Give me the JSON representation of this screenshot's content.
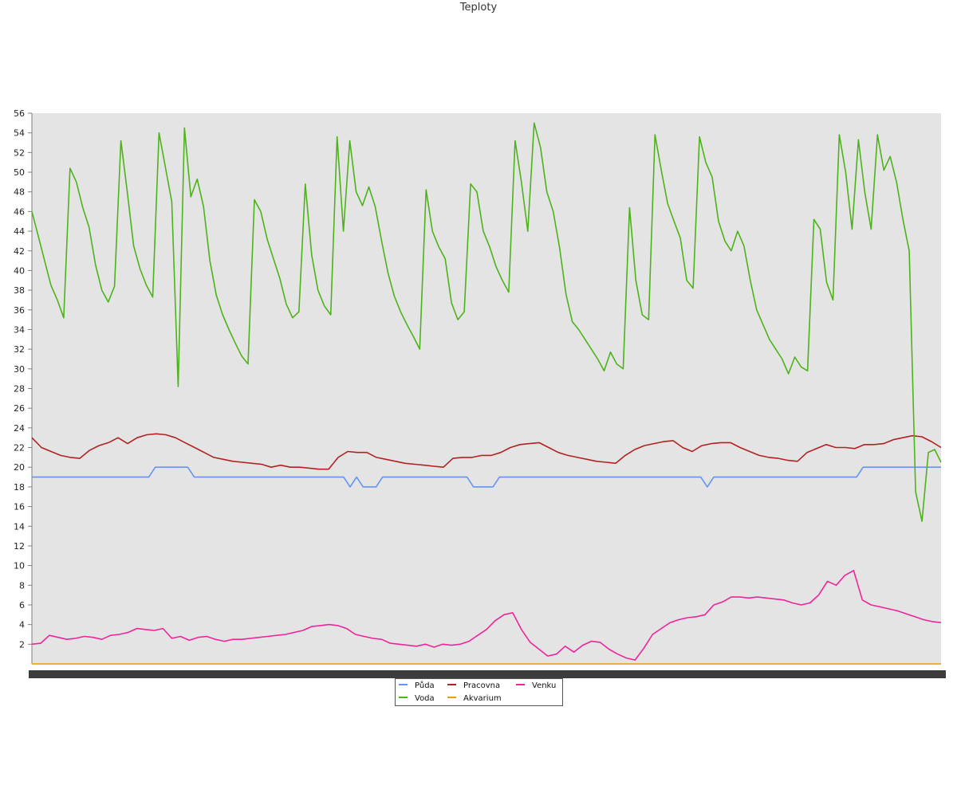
{
  "chart_data": {
    "type": "line",
    "title": "Teploty",
    "xlabel": "",
    "ylabel": "",
    "ylim": [
      0,
      56
    ],
    "yticks": [
      2,
      4,
      6,
      8,
      10,
      12,
      14,
      16,
      18,
      20,
      22,
      24,
      26,
      28,
      30,
      32,
      34,
      36,
      38,
      40,
      42,
      44,
      46,
      48,
      50,
      52,
      54,
      56
    ],
    "grid": false,
    "legend_position": "bottom-center",
    "x_count": 141,
    "series": [
      {
        "name": "Půda",
        "color": "#6495ed",
        "values": [
          19,
          19,
          19,
          19,
          19,
          19,
          19,
          19,
          19,
          19,
          19,
          19,
          19,
          19,
          19,
          19,
          19,
          19,
          19,
          20,
          20,
          20,
          20,
          20,
          20,
          19,
          19,
          19,
          19,
          19,
          19,
          19,
          19,
          19,
          19,
          19,
          19,
          19,
          19,
          19,
          19,
          19,
          19,
          19,
          19,
          19,
          19,
          19,
          19,
          18,
          19,
          18,
          18,
          18,
          19,
          19,
          19,
          19,
          19,
          19,
          19,
          19,
          19,
          19,
          19,
          19,
          19,
          19,
          18,
          18,
          18,
          18,
          19,
          19,
          19,
          19,
          19,
          19,
          19,
          19,
          19,
          19,
          19,
          19,
          19,
          19,
          19,
          19,
          19,
          19,
          19,
          19,
          19,
          19,
          19,
          19,
          19,
          19,
          19,
          19,
          19,
          19,
          19,
          19,
          18,
          19,
          19,
          19,
          19,
          19,
          19,
          19,
          19,
          19,
          19,
          19,
          19,
          19,
          19,
          19,
          19,
          19,
          19,
          19,
          19,
          19,
          19,
          19,
          20,
          20,
          20,
          20,
          20,
          20,
          20,
          20,
          20,
          20,
          20,
          20,
          20
        ]
      },
      {
        "name": "Voda",
        "color": "#4db31a",
        "values": [
          46,
          43.5,
          41,
          38.5,
          37,
          35.2,
          50.4,
          49,
          46.4,
          44.4,
          40.6,
          38,
          36.8,
          38.4,
          53.2,
          48,
          42.5,
          40.2,
          38.5,
          37.3,
          54,
          50.5,
          47,
          28.2,
          54.5,
          47.5,
          49.3,
          46.5,
          41,
          37.5,
          35.5,
          34,
          32.6,
          31.3,
          30.5,
          47.2,
          46,
          43.2,
          41.2,
          39.2,
          36.6,
          35.2,
          35.8,
          48.8,
          41.6,
          38,
          36.4,
          35.5,
          53.6,
          44,
          53.2,
          48,
          46.6,
          48.5,
          46.5,
          43,
          39.8,
          37.4,
          35.8,
          34.5,
          33.3,
          32,
          48.2,
          44,
          42.4,
          41.2,
          36.7,
          35,
          35.8,
          48.8,
          48,
          44,
          42.4,
          40.4,
          39,
          37.8,
          53.2,
          49,
          44,
          55,
          52.5,
          48,
          46,
          42.3,
          37.6,
          34.8,
          34,
          33,
          32,
          31,
          29.8,
          31.7,
          30.5,
          30,
          46.4,
          39,
          35.5,
          35,
          53.8,
          50.2,
          46.8,
          45,
          43.3,
          39,
          38.2,
          53.6,
          51,
          49.5,
          45,
          43,
          42,
          44,
          42.5,
          39,
          36,
          34.5,
          33,
          32,
          31,
          29.5,
          31.2,
          30.2,
          29.8,
          45.2,
          44.2,
          38.8,
          37,
          53.8,
          50,
          44.2,
          53.3,
          48,
          44.2,
          53.8,
          50.2,
          51.6,
          49,
          45.2,
          42,
          17.5,
          14.5,
          21.5,
          21.8,
          20.5
        ]
      },
      {
        "name": "Pracovna",
        "color": "#b22222",
        "values": [
          23,
          22,
          21.6,
          21.2,
          21,
          20.9,
          21.7,
          22.2,
          22.5,
          23,
          22.4,
          23,
          23.3,
          23.4,
          23.3,
          23,
          22.5,
          22,
          21.5,
          21,
          20.8,
          20.6,
          20.5,
          20.4,
          20.3,
          20,
          20.2,
          20,
          20,
          19.9,
          19.8,
          19.8,
          21,
          21.6,
          21.5,
          21.5,
          21,
          20.8,
          20.6,
          20.4,
          20.3,
          20.2,
          20.1,
          20,
          20.9,
          21,
          21,
          21.2,
          21.2,
          21.5,
          22,
          22.3,
          22.4,
          22.5,
          22,
          21.5,
          21.2,
          21,
          20.8,
          20.6,
          20.5,
          20.4,
          21.2,
          21.8,
          22.2,
          22.4,
          22.6,
          22.7,
          22,
          21.6,
          22.2,
          22.4,
          22.5,
          22.5,
          22,
          21.6,
          21.2,
          21,
          20.9,
          20.7,
          20.6,
          21.5,
          21.9,
          22.3,
          22,
          22,
          21.9,
          22.3,
          22.3,
          22.4,
          22.8,
          23,
          23.2,
          23.1,
          22.6,
          22
        ]
      },
      {
        "name": "Akvarium",
        "color": "#e8a000",
        "values": [
          0,
          0
        ]
      },
      {
        "name": "Venku",
        "color": "#f0249a",
        "values": [
          2,
          2.1,
          2.9,
          2.7,
          2.5,
          2.6,
          2.8,
          2.7,
          2.5,
          2.9,
          3,
          3.2,
          3.6,
          3.5,
          3.4,
          3.6,
          2.6,
          2.8,
          2.4,
          2.7,
          2.8,
          2.5,
          2.3,
          2.5,
          2.5,
          2.6,
          2.7,
          2.8,
          2.9,
          3,
          3.2,
          3.4,
          3.8,
          3.9,
          4,
          3.9,
          3.6,
          3,
          2.8,
          2.6,
          2.5,
          2.1,
          2,
          1.9,
          1.8,
          2,
          1.7,
          2,
          1.9,
          2,
          2.3,
          2.9,
          3.5,
          4.4,
          5,
          5.2,
          3.5,
          2.2,
          1.5,
          0.8,
          1,
          1.8,
          1.2,
          1.9,
          2.3,
          2.2,
          1.5,
          1,
          0.6,
          0.4,
          1.6,
          3,
          3.6,
          4.2,
          4.5,
          4.7,
          4.8,
          5,
          6,
          6.3,
          6.8,
          6.8,
          6.7,
          6.8,
          6.7,
          6.6,
          6.5,
          6.2,
          6,
          6.2,
          7,
          8.4,
          8,
          9,
          9.5,
          6.5,
          6,
          5.8,
          5.6,
          5.4,
          5.1,
          4.8,
          4.5,
          4.3,
          4.2
        ]
      }
    ]
  }
}
